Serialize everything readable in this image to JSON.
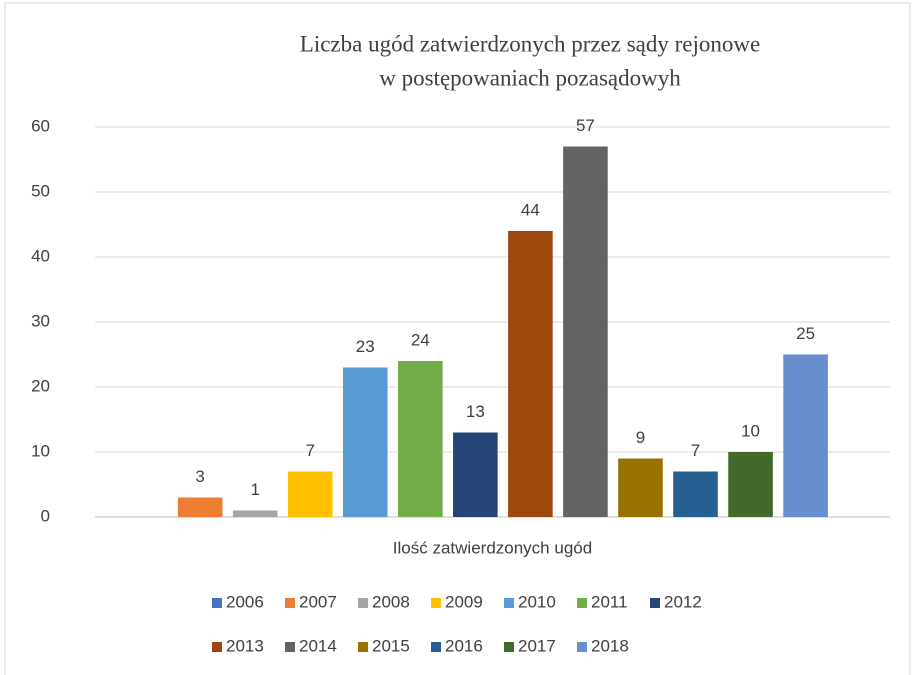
{
  "chart_data": {
    "type": "bar",
    "title": [
      "Liczba ugód zatwierdzonych przez sądy rejonowe",
      "w postępowaniach pozasądowyh"
    ],
    "categories": [
      "Ilość zatwierdzonych ugód"
    ],
    "series": [
      {
        "name": "2006",
        "color": "#4472c4",
        "values": [
          null
        ]
      },
      {
        "name": "2007",
        "color": "#ed7d31",
        "values": [
          3
        ]
      },
      {
        "name": "2008",
        "color": "#a5a5a5",
        "values": [
          1
        ]
      },
      {
        "name": "2009",
        "color": "#ffc000",
        "values": [
          7
        ]
      },
      {
        "name": "2010",
        "color": "#5b9bd5",
        "values": [
          23
        ]
      },
      {
        "name": "2011",
        "color": "#70ad47",
        "values": [
          24
        ]
      },
      {
        "name": "2012",
        "color": "#264478",
        "values": [
          13
        ]
      },
      {
        "name": "2013",
        "color": "#9e480e",
        "values": [
          44
        ]
      },
      {
        "name": "2014",
        "color": "#636363",
        "values": [
          57
        ]
      },
      {
        "name": "2015",
        "color": "#997300",
        "values": [
          9
        ]
      },
      {
        "name": "2016",
        "color": "#255e91",
        "values": [
          7
        ]
      },
      {
        "name": "2017",
        "color": "#43682b",
        "values": [
          10
        ]
      },
      {
        "name": "2018",
        "color": "#698ed0",
        "values": [
          25
        ]
      }
    ],
    "ylim": [
      0,
      60
    ],
    "yticks": [
      0,
      10,
      20,
      30,
      40,
      50,
      60
    ],
    "grid": true,
    "legend": "bottom"
  }
}
